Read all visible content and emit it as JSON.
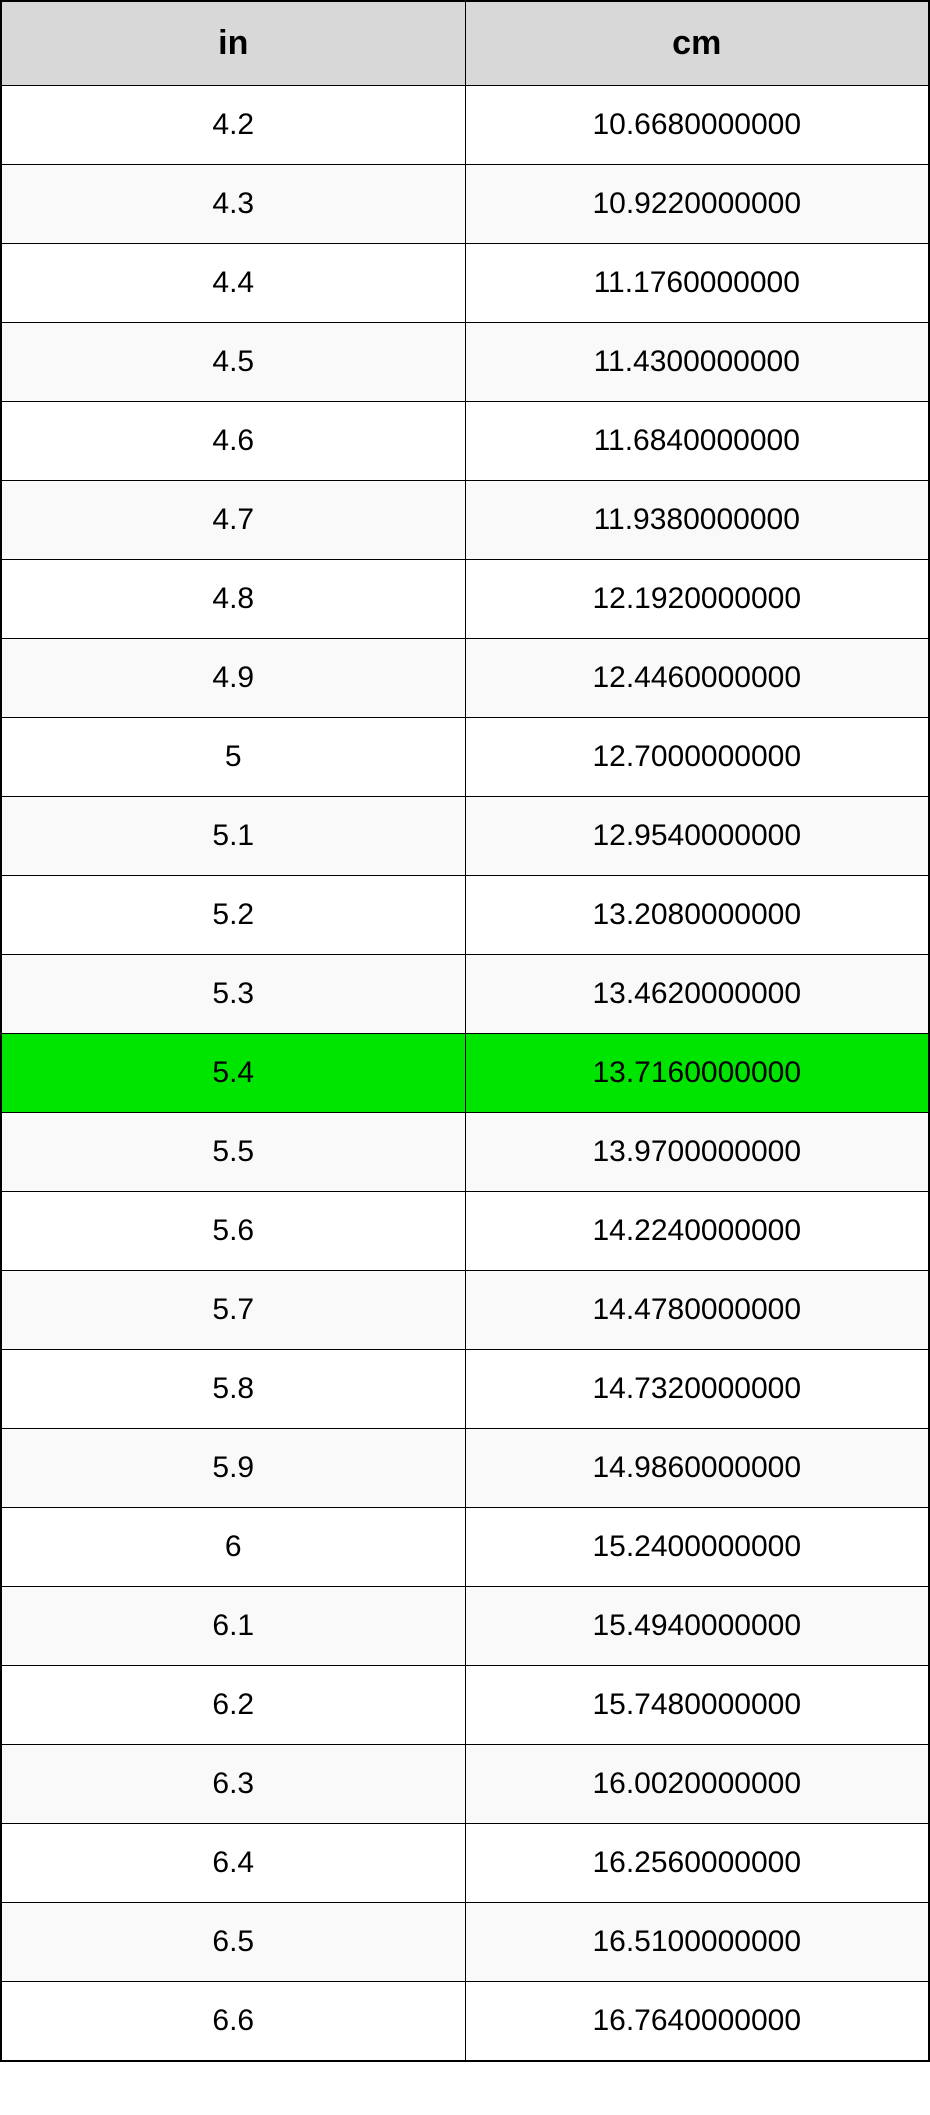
{
  "table": {
    "type": "table",
    "columns": [
      "in",
      "cm"
    ],
    "column_widths": [
      "50%",
      "50%"
    ],
    "column_alignment": [
      "center",
      "center"
    ],
    "header_background": "#d8d8d8",
    "header_fontsize": 34,
    "header_fontweight": "bold",
    "cell_fontsize": 30,
    "border_color": "#000000",
    "outer_border_width": 2,
    "inner_border_width": 1,
    "row_bg_odd": "#ffffff",
    "row_bg_even": "#f9f9f9",
    "highlight_bg": "#00e500",
    "highlighted_row_index": 12,
    "rows": [
      {
        "in": "4.2",
        "cm": "10.6680000000"
      },
      {
        "in": "4.3",
        "cm": "10.9220000000"
      },
      {
        "in": "4.4",
        "cm": "11.1760000000"
      },
      {
        "in": "4.5",
        "cm": "11.4300000000"
      },
      {
        "in": "4.6",
        "cm": "11.6840000000"
      },
      {
        "in": "4.7",
        "cm": "11.9380000000"
      },
      {
        "in": "4.8",
        "cm": "12.1920000000"
      },
      {
        "in": "4.9",
        "cm": "12.4460000000"
      },
      {
        "in": "5",
        "cm": "12.7000000000"
      },
      {
        "in": "5.1",
        "cm": "12.9540000000"
      },
      {
        "in": "5.2",
        "cm": "13.2080000000"
      },
      {
        "in": "5.3",
        "cm": "13.4620000000"
      },
      {
        "in": "5.4",
        "cm": "13.7160000000"
      },
      {
        "in": "5.5",
        "cm": "13.9700000000"
      },
      {
        "in": "5.6",
        "cm": "14.2240000000"
      },
      {
        "in": "5.7",
        "cm": "14.4780000000"
      },
      {
        "in": "5.8",
        "cm": "14.7320000000"
      },
      {
        "in": "5.9",
        "cm": "14.9860000000"
      },
      {
        "in": "6",
        "cm": "15.2400000000"
      },
      {
        "in": "6.1",
        "cm": "15.4940000000"
      },
      {
        "in": "6.2",
        "cm": "15.7480000000"
      },
      {
        "in": "6.3",
        "cm": "16.0020000000"
      },
      {
        "in": "6.4",
        "cm": "16.2560000000"
      },
      {
        "in": "6.5",
        "cm": "16.5100000000"
      },
      {
        "in": "6.6",
        "cm": "16.7640000000"
      }
    ]
  }
}
